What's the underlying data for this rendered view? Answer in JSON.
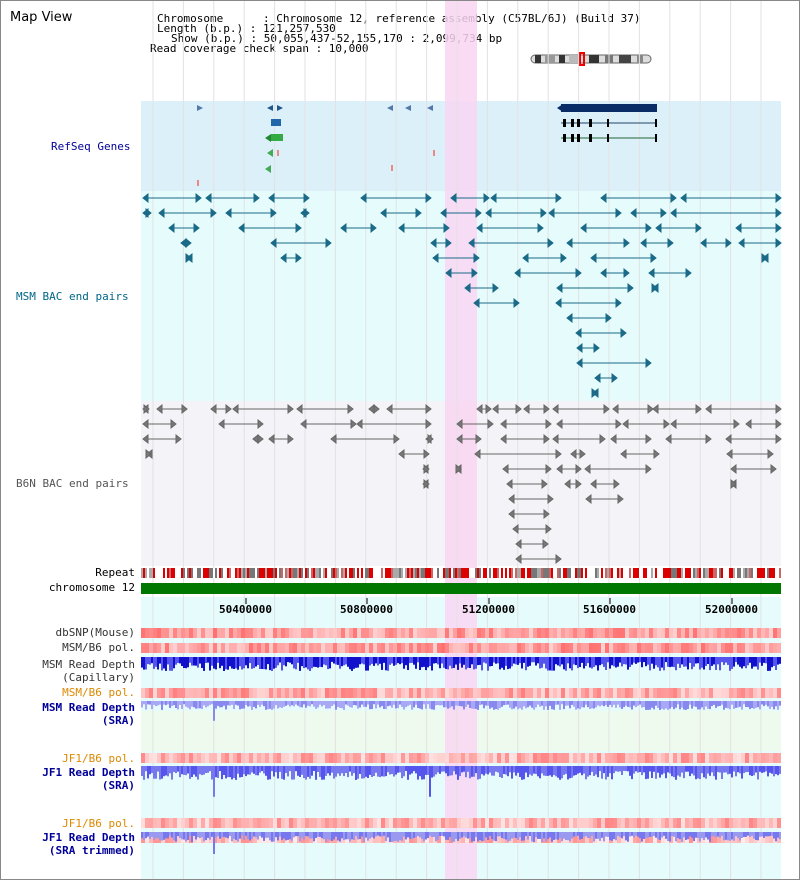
{
  "header": {
    "title": "Map View",
    "chromosome_line": "Chromosome      : Chromosome 12, reference assembly (C57BL/6J) (Build 37)",
    "length_line": "Length (b.p.) : 121,257,530",
    "show_line": "Show (b.p.) : 50,055,437-52,155,170 : 2,099,734 bp",
    "span_line": "Read coverage check span : 10,000"
  },
  "tracks": {
    "refseq": "RefSeq Genes",
    "msm_bac": "MSM BAC end pairs",
    "b6n_bac": "B6N BAC end pairs",
    "repeat": "Repeat",
    "chromosome": "chromosome 12",
    "dbsnp": "dbSNP(Mouse)",
    "msm_b6_pol_1": "MSM/B6 pol.",
    "msm_read_depth_cap_1": "MSM Read Depth",
    "msm_read_depth_cap_2": "(Capillary)",
    "msm_b6_pol_2": "MSM/B6 pol.",
    "msm_read_depth_sra_1": "MSM Read Depth",
    "msm_read_depth_sra_2": "(SRA)",
    "jf1_pol_1": "JF1/B6 pol.",
    "jf1_read_depth_sra_1": "JF1 Read Depth",
    "jf1_read_depth_sra_2": "(SRA)",
    "jf1_pol_2": "JF1/B6 pol.",
    "jf1_read_depth_trim_1": "JF1 Read Depth",
    "jf1_read_depth_trim_2": "(SRA trimmed)"
  },
  "axis": {
    "ticks": [
      "50400000",
      "50800000",
      "51200000",
      "51600000",
      "52000000"
    ]
  },
  "colors": {
    "refseq_bg": "#dcf0fa",
    "msm_bg": "#e6fcfc",
    "b6n_bg": "#f4f4f8",
    "highlight": "#f8d6f2",
    "refseq_label": "#000099",
    "msm_label": "#006688",
    "b6n_label": "#555555",
    "pol_orange": "#dd8800",
    "depth_blue": "#000099"
  }
}
